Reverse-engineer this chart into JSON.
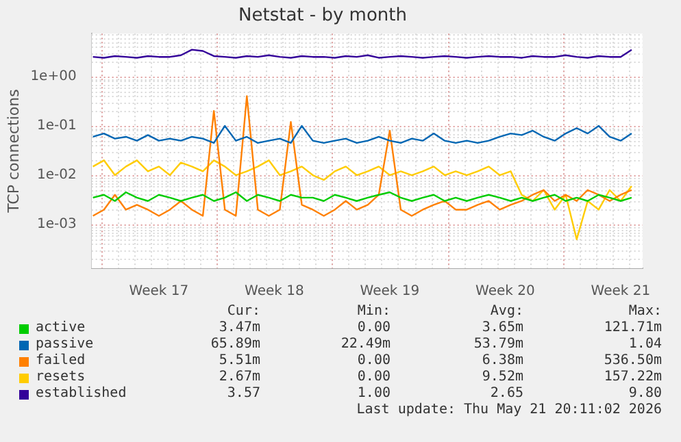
{
  "chart_data": {
    "type": "line",
    "title": "Netstat - by month",
    "ylabel": "TCP connections",
    "log": "y",
    "grid": true,
    "legend": "bottom",
    "marker": "none",
    "line_style": "solid",
    "x": [
      "2026-04-19T12:00",
      "2026-04-20T04:00",
      "2026-04-20T20:00",
      "2026-04-21T12:00",
      "2026-04-22T04:00",
      "2026-04-22T20:00",
      "2026-04-23T12:00",
      "2026-04-24T04:00",
      "2026-04-24T20:00",
      "2026-04-25T12:00",
      "2026-04-26T04:00",
      "2026-04-26T20:00",
      "2026-04-27T12:00",
      "2026-04-28T04:00",
      "2026-04-28T20:00",
      "2026-04-29T12:00",
      "2026-04-30T04:00",
      "2026-04-30T20:00",
      "2026-05-01T12:00",
      "2026-05-02T04:00",
      "2026-05-02T20:00",
      "2026-05-03T12:00",
      "2026-05-04T04:00",
      "2026-05-04T20:00",
      "2026-05-05T12:00",
      "2026-05-06T04:00",
      "2026-05-06T20:00",
      "2026-05-07T12:00",
      "2026-05-08T04:00",
      "2026-05-08T20:00",
      "2026-05-09T12:00",
      "2026-05-10T04:00",
      "2026-05-10T20:00",
      "2026-05-11T12:00",
      "2026-05-12T04:00",
      "2026-05-12T20:00",
      "2026-05-13T12:00",
      "2026-05-14T04:00",
      "2026-05-14T20:00",
      "2026-05-15T12:00",
      "2026-05-16T04:00",
      "2026-05-16T20:00",
      "2026-05-17T12:00",
      "2026-05-18T04:00",
      "2026-05-18T20:00",
      "2026-05-19T12:00",
      "2026-05-20T04:00",
      "2026-05-20T20:00",
      "2026-05-21T12:00",
      "2026-05-22T04:00"
    ],
    "xlim": [
      "2026-04-19T10:00",
      "2026-05-22T20:00"
    ],
    "xticks": [
      {
        "value": "2026-04-20T00:00",
        "label": null
      },
      {
        "value": "2026-04-23T12:00",
        "label": "Week 17"
      },
      {
        "value": "2026-04-27T00:00",
        "label": null
      },
      {
        "value": "2026-04-30T12:00",
        "label": "Week 18"
      },
      {
        "value": "2026-05-04T00:00",
        "label": null
      },
      {
        "value": "2026-05-07T12:00",
        "label": "Week 19"
      },
      {
        "value": "2026-05-11T00:00",
        "label": null
      },
      {
        "value": "2026-05-14T12:00",
        "label": "Week 20"
      },
      {
        "value": "2026-05-18T00:00",
        "label": null
      },
      {
        "value": "2026-05-21T12:00",
        "label": "Week 21"
      }
    ],
    "ylim": [
      0.00013,
      7.4
    ],
    "yticks": [
      {
        "value": 0.001,
        "label": "1e-03"
      },
      {
        "value": 0.01,
        "label": "1e-02"
      },
      {
        "value": 0.1,
        "label": "1e-01"
      },
      {
        "value": 1,
        "label": "1e+00"
      }
    ],
    "series": [
      {
        "name": "active",
        "color": "#00cc00",
        "values": [
          0.0035,
          0.004,
          0.003,
          0.0045,
          0.0035,
          0.003,
          0.004,
          0.0035,
          0.003,
          0.0035,
          0.004,
          0.003,
          0.0035,
          0.0045,
          0.003,
          0.004,
          0.0035,
          0.003,
          0.004,
          0.0035,
          0.0035,
          0.003,
          0.004,
          0.0035,
          0.003,
          0.0035,
          0.004,
          0.0045,
          0.0035,
          0.003,
          0.0035,
          0.004,
          0.003,
          0.0035,
          0.003,
          0.0035,
          0.004,
          0.0035,
          0.003,
          0.0035,
          0.003,
          0.0035,
          0.004,
          0.003,
          0.0035,
          0.003,
          0.004,
          0.0035,
          0.003,
          0.0035
        ]
      },
      {
        "name": "passive",
        "color": "#0066b3",
        "values": [
          0.06,
          0.07,
          0.055,
          0.06,
          0.05,
          0.065,
          0.05,
          0.055,
          0.05,
          0.06,
          0.055,
          0.045,
          0.1,
          0.05,
          0.06,
          0.045,
          0.05,
          0.055,
          0.045,
          0.1,
          0.05,
          0.045,
          0.05,
          0.055,
          0.045,
          0.05,
          0.06,
          0.05,
          0.045,
          0.055,
          0.05,
          0.07,
          0.05,
          0.045,
          0.05,
          0.045,
          0.05,
          0.06,
          0.07,
          0.065,
          0.08,
          0.06,
          0.05,
          0.07,
          0.09,
          0.07,
          0.1,
          0.06,
          0.05,
          0.07
        ]
      },
      {
        "name": "failed",
        "color": "#ff8000",
        "values": [
          0.0015,
          0.002,
          0.004,
          0.002,
          0.0025,
          0.002,
          0.0015,
          0.002,
          0.003,
          0.002,
          0.0015,
          0.2,
          0.002,
          0.0015,
          0.4,
          0.002,
          0.0015,
          0.002,
          0.12,
          0.0025,
          0.002,
          0.0015,
          0.002,
          0.003,
          0.002,
          0.0025,
          0.004,
          0.08,
          0.002,
          0.0015,
          0.002,
          0.0025,
          0.003,
          0.002,
          0.002,
          0.0025,
          0.003,
          0.002,
          0.0025,
          0.003,
          0.004,
          0.005,
          0.003,
          0.004,
          0.003,
          0.005,
          0.004,
          0.003,
          0.004,
          0.005
        ]
      },
      {
        "name": "resets",
        "color": "#ffcc00",
        "values": [
          0.015,
          0.02,
          0.01,
          0.015,
          0.02,
          0.012,
          0.015,
          0.01,
          0.018,
          0.015,
          0.012,
          0.02,
          0.015,
          0.01,
          0.012,
          0.015,
          0.02,
          0.01,
          0.012,
          0.015,
          0.01,
          0.008,
          0.012,
          0.015,
          0.01,
          0.012,
          0.015,
          0.01,
          0.012,
          0.01,
          0.012,
          0.015,
          0.01,
          0.012,
          0.01,
          0.012,
          0.015,
          0.01,
          0.012,
          0.004,
          0.003,
          0.005,
          0.002,
          0.004,
          0.0005,
          0.003,
          0.002,
          0.005,
          0.003,
          0.006
        ]
      },
      {
        "name": "established",
        "color": "#330099",
        "values": [
          2.5,
          2.4,
          2.6,
          2.5,
          2.4,
          2.6,
          2.5,
          2.5,
          2.7,
          3.5,
          3.3,
          2.6,
          2.5,
          2.4,
          2.6,
          2.5,
          2.7,
          2.5,
          2.4,
          2.6,
          2.5,
          2.5,
          2.4,
          2.6,
          2.5,
          2.7,
          2.4,
          2.5,
          2.6,
          2.5,
          2.4,
          2.5,
          2.6,
          2.5,
          2.4,
          2.5,
          2.6,
          2.5,
          2.5,
          2.4,
          2.6,
          2.5,
          2.5,
          2.7,
          2.5,
          2.4,
          2.6,
          2.5,
          2.5,
          3.5
        ]
      }
    ],
    "annotations": [
      "Cur:",
      "Min:",
      "Avg:",
      "Max:",
      "3.47m",
      "0.00",
      "3.65m",
      "121.71m",
      "65.89m",
      "22.49m",
      "53.79m",
      "1.04",
      "5.51m",
      "0.00",
      "6.38m",
      "536.50m",
      "2.67m",
      "0.00",
      "9.52m",
      "157.22m",
      "3.57",
      "1.00",
      "2.65",
      "9.80",
      "Last update: Thu May 21 20:11:02 2026"
    ]
  }
}
